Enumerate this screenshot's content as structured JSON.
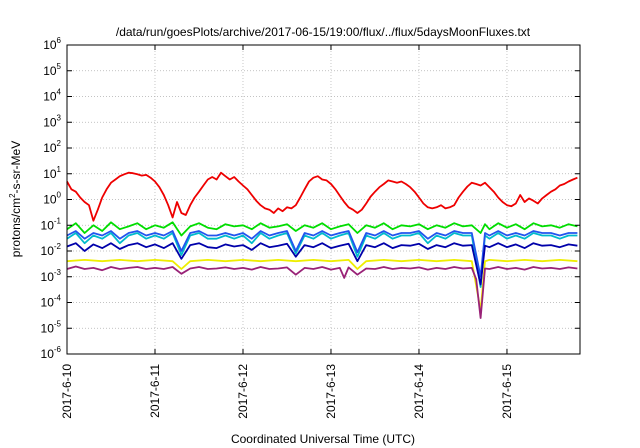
{
  "chart_data": {
    "type": "line",
    "title": "/data/run/goesPlots/archive/2017-06-15/19:00/flux/../flux/5daysMoonFluxes.txt",
    "xlabel": "Coordinated Universal Time (UTC)",
    "ylabel": {
      "pre": "protons/cm",
      "sup": "2",
      "post": "-s-sr-MeV"
    },
    "xlim": [
      0,
      5.83
    ],
    "x_tick_values": [
      0,
      1,
      2,
      3,
      4,
      5
    ],
    "x_ticks": [
      "2017-6-10",
      "2017-6-11",
      "2017-6-12",
      "2017-6-13",
      "2017-6-14",
      "2017-6-15"
    ],
    "y_scale": "log",
    "ylim": [
      1e-06,
      1000000.0
    ],
    "y_ticks": [
      {
        "value": 1e-06,
        "base": "10",
        "exp": "-6"
      },
      {
        "value": 1e-05,
        "base": "10",
        "exp": "-5"
      },
      {
        "value": 0.0001,
        "base": "10",
        "exp": "-4"
      },
      {
        "value": 0.001,
        "base": "10",
        "exp": "-3"
      },
      {
        "value": 0.01,
        "base": "10",
        "exp": "-2"
      },
      {
        "value": 0.1,
        "base": "10",
        "exp": "-1"
      },
      {
        "value": 1,
        "base": "10",
        "exp": "0"
      },
      {
        "value": 10,
        "base": "10",
        "exp": "1"
      },
      {
        "value": 100,
        "base": "10",
        "exp": "2"
      },
      {
        "value": 1000,
        "base": "10",
        "exp": "3"
      },
      {
        "value": 10000,
        "base": "10",
        "exp": "4"
      },
      {
        "value": 100000,
        "base": "10",
        "exp": "5"
      },
      {
        "value": 1000000,
        "base": "10",
        "exp": "6"
      }
    ],
    "grid": true,
    "series": [
      {
        "color": "#ee0000",
        "x": [
          0,
          0.05,
          0.1,
          0.15,
          0.2,
          0.25,
          0.3,
          0.35,
          0.4,
          0.45,
          0.5,
          0.55,
          0.6,
          0.65,
          0.7,
          0.75,
          0.8,
          0.85,
          0.9,
          0.95,
          1.0,
          1.05,
          1.1,
          1.15,
          1.2,
          1.25,
          1.3,
          1.35,
          1.4,
          1.45,
          1.5,
          1.55,
          1.6,
          1.65,
          1.7,
          1.75,
          1.8,
          1.85,
          1.9,
          1.95,
          2.0,
          2.05,
          2.1,
          2.15,
          2.2,
          2.25,
          2.3,
          2.35,
          2.4,
          2.45,
          2.5,
          2.55,
          2.6,
          2.65,
          2.7,
          2.75,
          2.8,
          2.85,
          2.9,
          2.95,
          3.0,
          3.05,
          3.1,
          3.15,
          3.2,
          3.25,
          3.3,
          3.35,
          3.4,
          3.45,
          3.5,
          3.55,
          3.6,
          3.65,
          3.7,
          3.75,
          3.8,
          3.85,
          3.9,
          3.95,
          4.0,
          4.05,
          4.1,
          4.15,
          4.2,
          4.25,
          4.3,
          4.35,
          4.4,
          4.45,
          4.5,
          4.55,
          4.6,
          4.65,
          4.7,
          4.75,
          4.8,
          4.85,
          4.9,
          4.95,
          5.0,
          5.05,
          5.1,
          5.15,
          5.2,
          5.25,
          5.3,
          5.35,
          5.4,
          5.45,
          5.5,
          5.55,
          5.6,
          5.65,
          5.7,
          5.75,
          5.8
        ],
        "y": [
          5,
          2.5,
          2,
          1.2,
          0.8,
          0.6,
          0.15,
          0.4,
          1.2,
          2.5,
          4.5,
          6,
          8,
          9.5,
          11,
          10.5,
          9.5,
          8.5,
          9,
          7,
          5,
          3,
          1.5,
          0.6,
          0.2,
          0.8,
          0.3,
          0.25,
          0.6,
          1.2,
          2,
          3.5,
          6,
          7.5,
          6,
          11,
          8,
          6,
          7.5,
          5,
          3.5,
          2.5,
          1.5,
          0.9,
          0.6,
          0.45,
          0.4,
          0.3,
          0.45,
          0.35,
          0.5,
          0.45,
          0.6,
          1.2,
          2.5,
          5,
          7,
          8,
          6,
          5.5,
          4,
          2.5,
          1.4,
          0.8,
          0.5,
          0.4,
          0.3,
          0.4,
          0.7,
          1.3,
          2,
          3,
          4,
          5.5,
          5,
          4.5,
          5,
          4,
          3,
          2,
          1.2,
          0.7,
          0.5,
          0.45,
          0.5,
          0.6,
          0.45,
          0.5,
          0.6,
          1.2,
          2,
          3.2,
          4.5,
          4,
          3.5,
          4.5,
          3,
          2,
          1.2,
          0.8,
          0.6,
          0.55,
          0.7,
          1.5,
          0.8,
          1.1,
          0.9,
          0.7,
          1.1,
          1.5,
          2,
          2.5,
          3.5,
          4,
          5,
          6,
          7
        ]
      },
      {
        "color": "#00dd00",
        "x": [
          0,
          0.1,
          0.2,
          0.3,
          0.4,
          0.5,
          0.6,
          0.7,
          0.8,
          0.9,
          1.0,
          1.1,
          1.2,
          1.3,
          1.4,
          1.5,
          1.6,
          1.7,
          1.8,
          1.9,
          2.0,
          2.1,
          2.2,
          2.3,
          2.4,
          2.5,
          2.6,
          2.7,
          2.8,
          2.9,
          3.0,
          3.1,
          3.2,
          3.3,
          3.4,
          3.5,
          3.6,
          3.7,
          3.8,
          3.9,
          4.0,
          4.1,
          4.2,
          4.3,
          4.4,
          4.5,
          4.6,
          4.7,
          4.75,
          4.8,
          4.9,
          5.0,
          5.1,
          5.2,
          5.3,
          5.4,
          5.5,
          5.6,
          5.7,
          5.8
        ],
        "y": [
          0.07,
          0.12,
          0.05,
          0.1,
          0.06,
          0.13,
          0.07,
          0.09,
          0.12,
          0.07,
          0.1,
          0.08,
          0.13,
          0.04,
          0.09,
          0.12,
          0.08,
          0.07,
          0.11,
          0.09,
          0.1,
          0.07,
          0.12,
          0.08,
          0.09,
          0.11,
          0.06,
          0.1,
          0.08,
          0.12,
          0.07,
          0.09,
          0.11,
          0.05,
          0.1,
          0.08,
          0.12,
          0.07,
          0.1,
          0.09,
          0.11,
          0.07,
          0.1,
          0.08,
          0.12,
          0.09,
          0.1,
          0.05,
          0.11,
          0.07,
          0.12,
          0.08,
          0.11,
          0.07,
          0.12,
          0.09,
          0.1,
          0.08,
          0.11,
          0.09
        ]
      },
      {
        "color": "#00bbcc",
        "x": [
          0,
          0.1,
          0.2,
          0.3,
          0.4,
          0.5,
          0.6,
          0.7,
          0.8,
          0.9,
          1.0,
          1.1,
          1.2,
          1.3,
          1.4,
          1.5,
          1.6,
          1.7,
          1.8,
          1.9,
          2.0,
          2.1,
          2.2,
          2.3,
          2.4,
          2.5,
          2.6,
          2.7,
          2.8,
          2.9,
          3.0,
          3.1,
          3.2,
          3.3,
          3.4,
          3.5,
          3.6,
          3.7,
          3.8,
          3.9,
          4.0,
          4.1,
          4.2,
          4.3,
          4.4,
          4.5,
          4.6,
          4.7,
          4.75,
          4.8,
          4.9,
          5.0,
          5.1,
          5.2,
          5.3,
          5.4,
          5.5,
          5.6,
          5.7,
          5.8
        ],
        "y": [
          0.03,
          0.05,
          0.02,
          0.04,
          0.03,
          0.05,
          0.02,
          0.04,
          0.05,
          0.03,
          0.04,
          0.03,
          0.05,
          0.007,
          0.04,
          0.05,
          0.03,
          0.03,
          0.04,
          0.03,
          0.04,
          0.02,
          0.05,
          0.03,
          0.04,
          0.05,
          0.008,
          0.04,
          0.03,
          0.05,
          0.03,
          0.04,
          0.05,
          0.006,
          0.04,
          0.03,
          0.05,
          0.03,
          0.04,
          0.04,
          0.05,
          0.02,
          0.04,
          0.03,
          0.05,
          0.04,
          0.04,
          0.0004,
          0.04,
          0.03,
          0.05,
          0.03,
          0.04,
          0.03,
          0.05,
          0.04,
          0.04,
          0.03,
          0.04,
          0.04
        ]
      },
      {
        "color": "#2255ee",
        "x": [
          0,
          0.1,
          0.2,
          0.3,
          0.4,
          0.5,
          0.6,
          0.7,
          0.8,
          0.9,
          1.0,
          1.1,
          1.2,
          1.3,
          1.4,
          1.5,
          1.6,
          1.7,
          1.8,
          1.9,
          2.0,
          2.1,
          2.2,
          2.3,
          2.4,
          2.5,
          2.6,
          2.7,
          2.8,
          2.9,
          3.0,
          3.1,
          3.2,
          3.3,
          3.4,
          3.5,
          3.6,
          3.7,
          3.8,
          3.9,
          4.0,
          4.1,
          4.2,
          4.3,
          4.4,
          4.5,
          4.6,
          4.7,
          4.75,
          4.8,
          4.9,
          5.0,
          5.1,
          5.2,
          5.3,
          5.4,
          5.5,
          5.6,
          5.7,
          5.8
        ],
        "y": [
          0.04,
          0.06,
          0.03,
          0.05,
          0.04,
          0.06,
          0.03,
          0.05,
          0.06,
          0.04,
          0.05,
          0.04,
          0.06,
          0.01,
          0.05,
          0.06,
          0.04,
          0.04,
          0.05,
          0.04,
          0.05,
          0.03,
          0.06,
          0.04,
          0.05,
          0.06,
          0.01,
          0.05,
          0.04,
          0.06,
          0.04,
          0.05,
          0.06,
          0.009,
          0.05,
          0.04,
          0.06,
          0.04,
          0.05,
          0.05,
          0.06,
          0.03,
          0.05,
          0.04,
          0.06,
          0.05,
          0.05,
          0.001,
          0.05,
          0.04,
          0.06,
          0.04,
          0.05,
          0.04,
          0.06,
          0.05,
          0.05,
          0.04,
          0.05,
          0.05
        ]
      },
      {
        "color": "#0000aa",
        "x": [
          0,
          0.1,
          0.2,
          0.3,
          0.4,
          0.5,
          0.6,
          0.7,
          0.8,
          0.9,
          1.0,
          1.1,
          1.2,
          1.3,
          1.4,
          1.5,
          1.6,
          1.7,
          1.8,
          1.9,
          2.0,
          2.1,
          2.2,
          2.3,
          2.4,
          2.5,
          2.6,
          2.7,
          2.8,
          2.9,
          3.0,
          3.1,
          3.2,
          3.3,
          3.4,
          3.5,
          3.6,
          3.7,
          3.8,
          3.9,
          4.0,
          4.1,
          4.2,
          4.3,
          4.4,
          4.5,
          4.6,
          4.7,
          4.75,
          4.8,
          4.9,
          5.0,
          5.1,
          5.2,
          5.3,
          5.4,
          5.5,
          5.6,
          5.7,
          5.8
        ],
        "y": [
          0.015,
          0.02,
          0.01,
          0.018,
          0.013,
          0.02,
          0.012,
          0.017,
          0.02,
          0.014,
          0.018,
          0.013,
          0.02,
          0.005,
          0.017,
          0.02,
          0.014,
          0.013,
          0.018,
          0.015,
          0.017,
          0.011,
          0.02,
          0.014,
          0.016,
          0.019,
          0.006,
          0.017,
          0.014,
          0.02,
          0.013,
          0.016,
          0.019,
          0.004,
          0.017,
          0.014,
          0.02,
          0.013,
          0.017,
          0.016,
          0.019,
          0.012,
          0.017,
          0.014,
          0.02,
          0.016,
          0.017,
          0.0005,
          0.016,
          0.014,
          0.02,
          0.014,
          0.018,
          0.013,
          0.02,
          0.016,
          0.017,
          0.014,
          0.018,
          0.016
        ]
      },
      {
        "color": "#eeee00",
        "x": [
          0,
          0.2,
          0.4,
          0.6,
          0.8,
          1.0,
          1.2,
          1.3,
          1.4,
          1.6,
          1.8,
          2.0,
          2.2,
          2.4,
          2.6,
          2.8,
          3.0,
          3.2,
          3.3,
          3.4,
          3.6,
          3.8,
          4.0,
          4.2,
          4.4,
          4.6,
          4.7,
          4.75,
          4.8,
          5.0,
          5.2,
          5.4,
          5.6,
          5.8
        ],
        "y": [
          0.004,
          0.0045,
          0.004,
          0.0045,
          0.004,
          0.0045,
          0.004,
          0.002,
          0.004,
          0.0045,
          0.004,
          0.0045,
          0.004,
          0.0045,
          0.004,
          0.0045,
          0.004,
          0.0045,
          0.002,
          0.004,
          0.0045,
          0.004,
          0.0045,
          0.004,
          0.0045,
          0.004,
          5e-05,
          0.004,
          0.0045,
          0.004,
          0.0045,
          0.004,
          0.0045,
          0.004
        ]
      },
      {
        "color": "#992277",
        "x": [
          0,
          0.1,
          0.2,
          0.3,
          0.4,
          0.5,
          0.6,
          0.7,
          0.8,
          0.9,
          1.0,
          1.1,
          1.2,
          1.3,
          1.4,
          1.5,
          1.6,
          1.7,
          1.8,
          1.9,
          2.0,
          2.1,
          2.2,
          2.3,
          2.4,
          2.5,
          2.6,
          2.7,
          2.8,
          2.9,
          3.0,
          3.1,
          3.15,
          3.2,
          3.3,
          3.4,
          3.5,
          3.6,
          3.7,
          3.8,
          3.9,
          4.0,
          4.1,
          4.2,
          4.3,
          4.4,
          4.5,
          4.6,
          4.65,
          4.7,
          4.75,
          4.8,
          4.9,
          5.0,
          5.1,
          5.2,
          5.3,
          5.4,
          5.5,
          5.6,
          5.7,
          5.8
        ],
        "y": [
          0.002,
          0.0025,
          0.002,
          0.0022,
          0.0018,
          0.0024,
          0.002,
          0.0022,
          0.0024,
          0.002,
          0.0022,
          0.002,
          0.0024,
          0.0013,
          0.0021,
          0.0024,
          0.002,
          0.0021,
          0.0023,
          0.002,
          0.0022,
          0.0019,
          0.0024,
          0.002,
          0.0021,
          0.0023,
          0.0012,
          0.0022,
          0.002,
          0.0024,
          0.0019,
          0.0022,
          0.0009,
          0.0023,
          0.0012,
          0.0021,
          0.002,
          0.0024,
          0.002,
          0.0022,
          0.0021,
          0.0023,
          0.0019,
          0.0022,
          0.002,
          0.0024,
          0.0021,
          0.0022,
          0.0008,
          2.5e-05,
          0.0021,
          0.002,
          0.0024,
          0.002,
          0.0022,
          0.0019,
          0.0024,
          0.0021,
          0.0022,
          0.002,
          0.0023,
          0.0021
        ]
      }
    ]
  }
}
